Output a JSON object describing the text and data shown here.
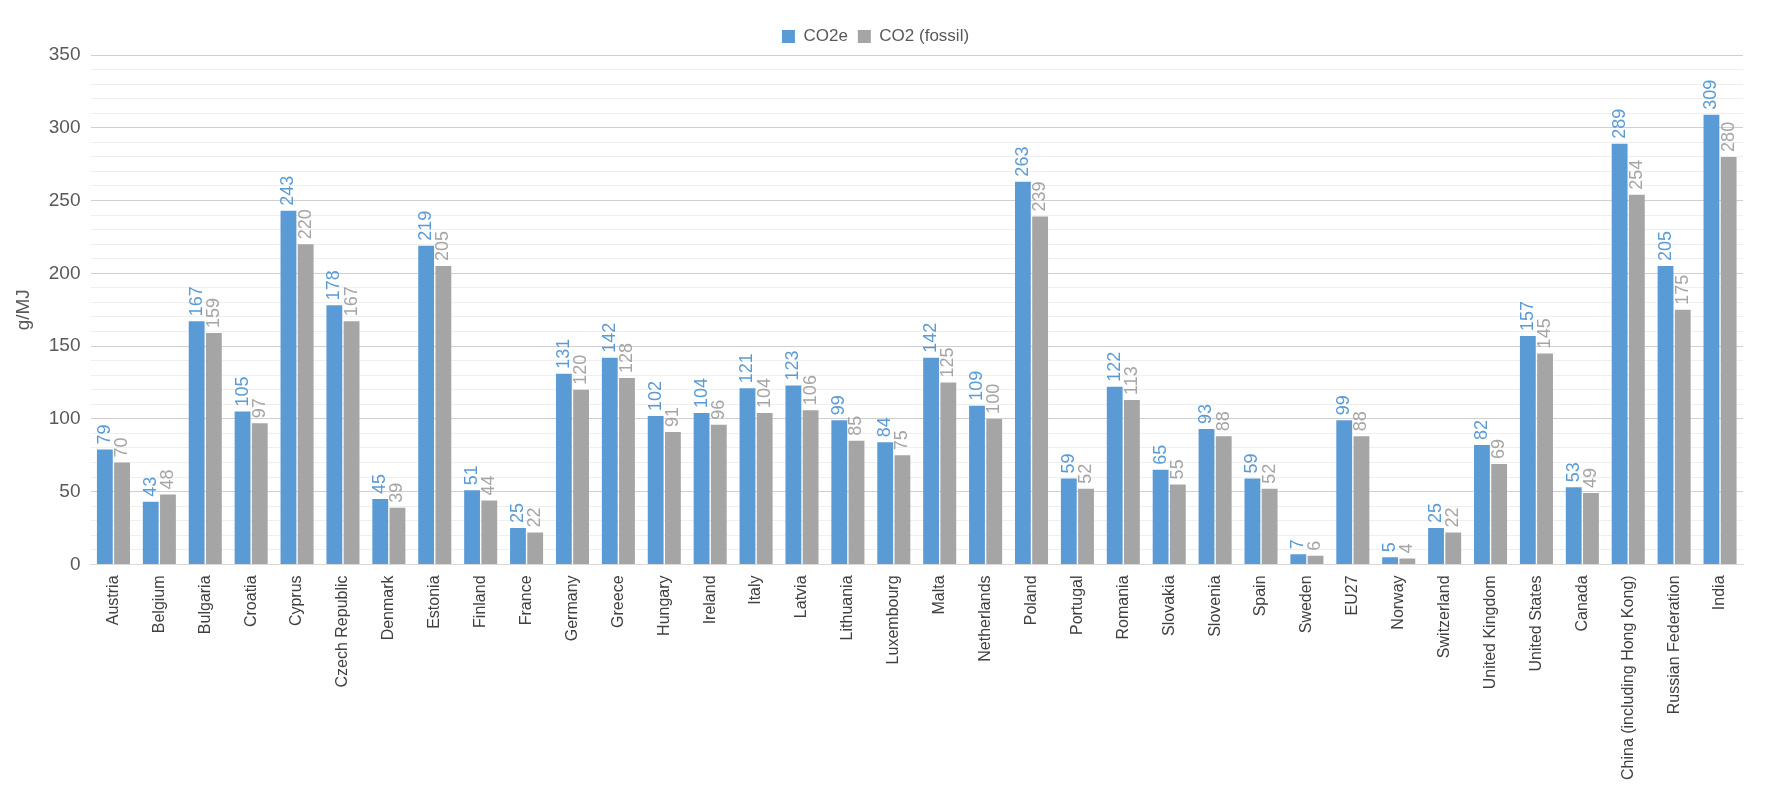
{
  "chart_data": {
    "type": "bar",
    "ylabel": "g/MJ",
    "categories": [
      "Austria",
      "Belgium",
      "Bulgaria",
      "Croatia",
      "Cyprus",
      "Czech Republic",
      "Denmark",
      "Estonia",
      "Finland",
      "France",
      "Germany",
      "Greece",
      "Hungary",
      "Ireland",
      "Italy",
      "Latvia",
      "Lithuania",
      "Luxembourg",
      "Malta",
      "Netherlands",
      "Poland",
      "Portugal",
      "Romania",
      "Slovakia",
      "Slovenia",
      "Spain",
      "Sweden",
      "EU27",
      "Norway",
      "Switzerland",
      "United Kingdom",
      "United States",
      "Canada",
      "China (including Hong Kong)",
      "Russian Federation",
      "India"
    ],
    "series": [
      {
        "name": "CO2e",
        "color": "#5b9bd5",
        "values": [
          79,
          43,
          167,
          105,
          243,
          178,
          45,
          219,
          51,
          25,
          131,
          142,
          102,
          104,
          121,
          123,
          99,
          84,
          142,
          109,
          263,
          59,
          122,
          65,
          93,
          59,
          7,
          99,
          5,
          25,
          82,
          157,
          53,
          289,
          205,
          309
        ]
      },
      {
        "name": "CO2 (fossil)",
        "color": "#a5a5a5",
        "values": [
          70,
          48,
          159,
          97,
          220,
          167,
          39,
          205,
          44,
          22,
          120,
          128,
          91,
          96,
          104,
          106,
          85,
          75,
          125,
          100,
          239,
          52,
          113,
          55,
          88,
          52,
          6,
          88,
          4,
          22,
          69,
          145,
          49,
          254,
          175,
          280
        ]
      }
    ],
    "ylim": [
      0,
      350
    ],
    "yticks": [
      0,
      {
        "value": 10,
        "label": null
      },
      {
        "value": 20,
        "label": null
      },
      {
        "value": 30,
        "label": null
      },
      {
        "value": 40,
        "label": null
      },
      50,
      {
        "value": 60,
        "label": null
      },
      {
        "value": 70,
        "label": null
      },
      {
        "value": 80,
        "label": null
      },
      {
        "value": 90,
        "label": null
      },
      100,
      {
        "value": 110,
        "label": null
      },
      {
        "value": 120,
        "label": null
      },
      {
        "value": 130,
        "label": null
      },
      {
        "value": 140,
        "label": null
      },
      150,
      {
        "value": 160,
        "label": null
      },
      {
        "value": 170,
        "label": null
      },
      {
        "value": 180,
        "label": null
      },
      {
        "value": 190,
        "label": null
      },
      200,
      {
        "value": 210,
        "label": null
      },
      {
        "value": 220,
        "label": null
      },
      {
        "value": 230,
        "label": null
      },
      {
        "value": 240,
        "label": null
      },
      250,
      {
        "value": 260,
        "label": null
      },
      {
        "value": 270,
        "label": null
      },
      {
        "value": 280,
        "label": null
      },
      {
        "value": 290,
        "label": null
      },
      300,
      {
        "value": 310,
        "label": null
      },
      {
        "value": 320,
        "label": null
      },
      {
        "value": 330,
        "label": null
      },
      {
        "value": 340,
        "label": null
      },
      350
    ],
    "grid": "y",
    "legend": "top",
    "data_labels": true
  }
}
